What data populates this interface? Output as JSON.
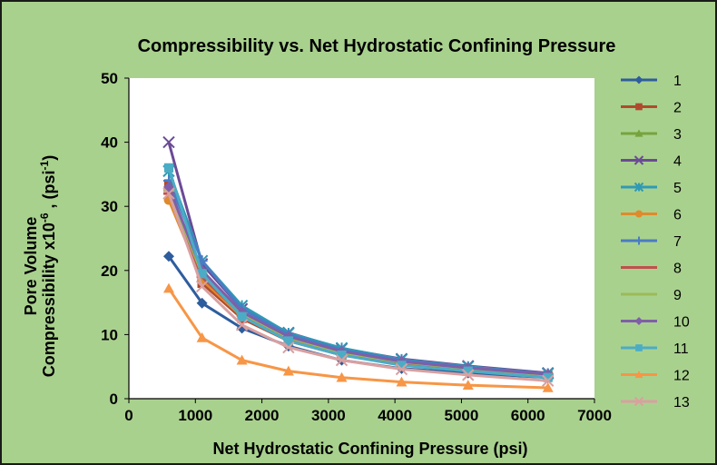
{
  "colors": {
    "frame_background": "#a9d18e",
    "frame_border": "#1a1a1a",
    "plot_background": "#ffffff",
    "axis": "#000000"
  },
  "chart_data": {
    "type": "line",
    "title": "Compressibility  vs. Net Hydrostatic Confining Pressure",
    "xlabel": "Net Hydrostatic Confining Pressure (psi)",
    "ylabel": {
      "line1": "Pore Volume",
      "line2_main": "Compressibility x10",
      "line2_exp": "-6",
      "line2_mid": " , (psi",
      "line2_exp2": "-1",
      "line2_end": ")"
    },
    "xlim": [
      0,
      7000
    ],
    "ylim": [
      0,
      50
    ],
    "xticks": [
      "0",
      "1000",
      "2000",
      "3000",
      "4000",
      "5000",
      "6000",
      "7000"
    ],
    "yticks": [
      "0",
      "10",
      "20",
      "30",
      "40",
      "50"
    ],
    "grid": false,
    "legend_position": "right",
    "x": [
      600,
      1100,
      1700,
      2400,
      3200,
      4100,
      5100,
      6300
    ],
    "series": [
      {
        "name": "1",
        "color": "#2e5d9e",
        "marker": "diamond",
        "values": [
          22.2,
          14.9,
          11.0,
          8.2,
          6.0,
          4.7,
          4.0,
          3.3
        ]
      },
      {
        "name": "2",
        "color": "#b04a2c",
        "marker": "square",
        "values": [
          33.5,
          18.0,
          12.5,
          9.0,
          6.8,
          5.4,
          4.5,
          3.6
        ]
      },
      {
        "name": "3",
        "color": "#77a33c",
        "marker": "triangle",
        "values": [
          33.0,
          19.0,
          13.0,
          9.3,
          7.0,
          5.6,
          4.6,
          3.7
        ]
      },
      {
        "name": "4",
        "color": "#6b4a96",
        "marker": "x",
        "values": [
          40.0,
          21.0,
          14.0,
          10.3,
          7.8,
          6.2,
          5.1,
          4.0
        ]
      },
      {
        "name": "5",
        "color": "#2f9ab5",
        "marker": "star",
        "values": [
          35.5,
          21.5,
          14.5,
          10.2,
          7.9,
          6.1,
          5.0,
          3.9
        ]
      },
      {
        "name": "6",
        "color": "#e08a2b",
        "marker": "circle",
        "values": [
          31.0,
          18.5,
          12.8,
          9.1,
          6.9,
          5.5,
          4.5,
          3.6
        ]
      },
      {
        "name": "7",
        "color": "#4a7cc4",
        "marker": "plus",
        "values": [
          34.0,
          21.5,
          14.0,
          10.0,
          7.6,
          6.0,
          4.9,
          3.9
        ]
      },
      {
        "name": "8",
        "color": "#c0504d",
        "marker": "dash",
        "values": [
          32.0,
          19.0,
          13.0,
          9.3,
          7.0,
          5.5,
          4.5,
          3.6
        ]
      },
      {
        "name": "9",
        "color": "#9bbb59",
        "marker": "dash",
        "values": [
          32.5,
          19.5,
          13.3,
          9.5,
          7.2,
          5.7,
          4.7,
          3.7
        ]
      },
      {
        "name": "10",
        "color": "#7f5fa8",
        "marker": "diamond",
        "values": [
          33.0,
          20.0,
          13.5,
          9.7,
          7.4,
          5.8,
          4.8,
          3.8
        ]
      },
      {
        "name": "11",
        "color": "#4bacc6",
        "marker": "square",
        "values": [
          36.0,
          19.5,
          12.8,
          9.0,
          6.8,
          5.2,
          4.3,
          3.3
        ]
      },
      {
        "name": "12",
        "color": "#f79646",
        "marker": "triangle",
        "values": [
          17.2,
          9.5,
          6.0,
          4.3,
          3.3,
          2.6,
          2.1,
          1.7
        ]
      },
      {
        "name": "13",
        "color": "#d9a0a0",
        "marker": "x",
        "values": [
          32.0,
          17.5,
          11.5,
          8.0,
          6.0,
          4.6,
          3.7,
          2.8
        ]
      }
    ]
  }
}
